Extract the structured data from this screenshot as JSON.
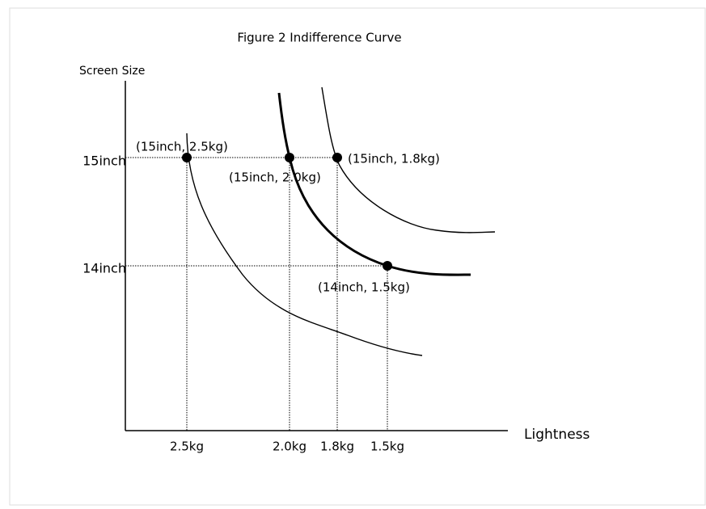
{
  "title": "Figure 2  Indifference Curve",
  "y_axis_label": "Screen Size",
  "x_axis_label": "Lightness",
  "y_ticks": [
    "15inch",
    "14inch"
  ],
  "x_ticks": [
    "2.5kg",
    "2.0kg",
    "1.8kg",
    "1.5kg"
  ],
  "points": [
    {
      "label": "(15inch, 2.5kg)"
    },
    {
      "label": "(15inch, 2.0kg)"
    },
    {
      "label": "(15inch, 1.8kg)"
    },
    {
      "label": "(14inch, 1.5kg)"
    }
  ]
}
